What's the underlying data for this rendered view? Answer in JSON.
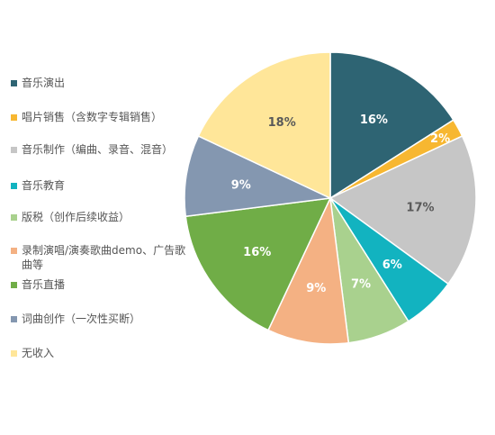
{
  "chart_data": {
    "type": "pie",
    "title": "",
    "slices": [
      {
        "label": "音乐演出",
        "value": 16,
        "display": "16%",
        "color": "#2e6473"
      },
      {
        "label": "唱片销售（含数字专辑销售）",
        "value": 2,
        "display": "2%",
        "color": "#f7b731"
      },
      {
        "label": "音乐制作（编曲、录音、混音）",
        "value": 17,
        "display": "17%",
        "color": "#c6c6c6"
      },
      {
        "label": "音乐教育",
        "value": 6,
        "display": "6%",
        "color": "#12b3c0"
      },
      {
        "label": "版税（创作后续收益）",
        "value": 7,
        "display": "7%",
        "color": "#a9d18e"
      },
      {
        "label": "录制演唱/演奏歌曲demo、广告歌曲等",
        "value": 9,
        "display": "9%",
        "color": "#f4b183"
      },
      {
        "label": "音乐直播",
        "value": 16,
        "display": "16%",
        "color": "#70ad47"
      },
      {
        "label": "词曲创作（一次性买断）",
        "value": 9,
        "display": "9%",
        "color": "#8497b0"
      },
      {
        "label": "无收入",
        "value": 18,
        "display": "18%",
        "color": "#ffe699"
      }
    ],
    "legend_position": "left"
  }
}
